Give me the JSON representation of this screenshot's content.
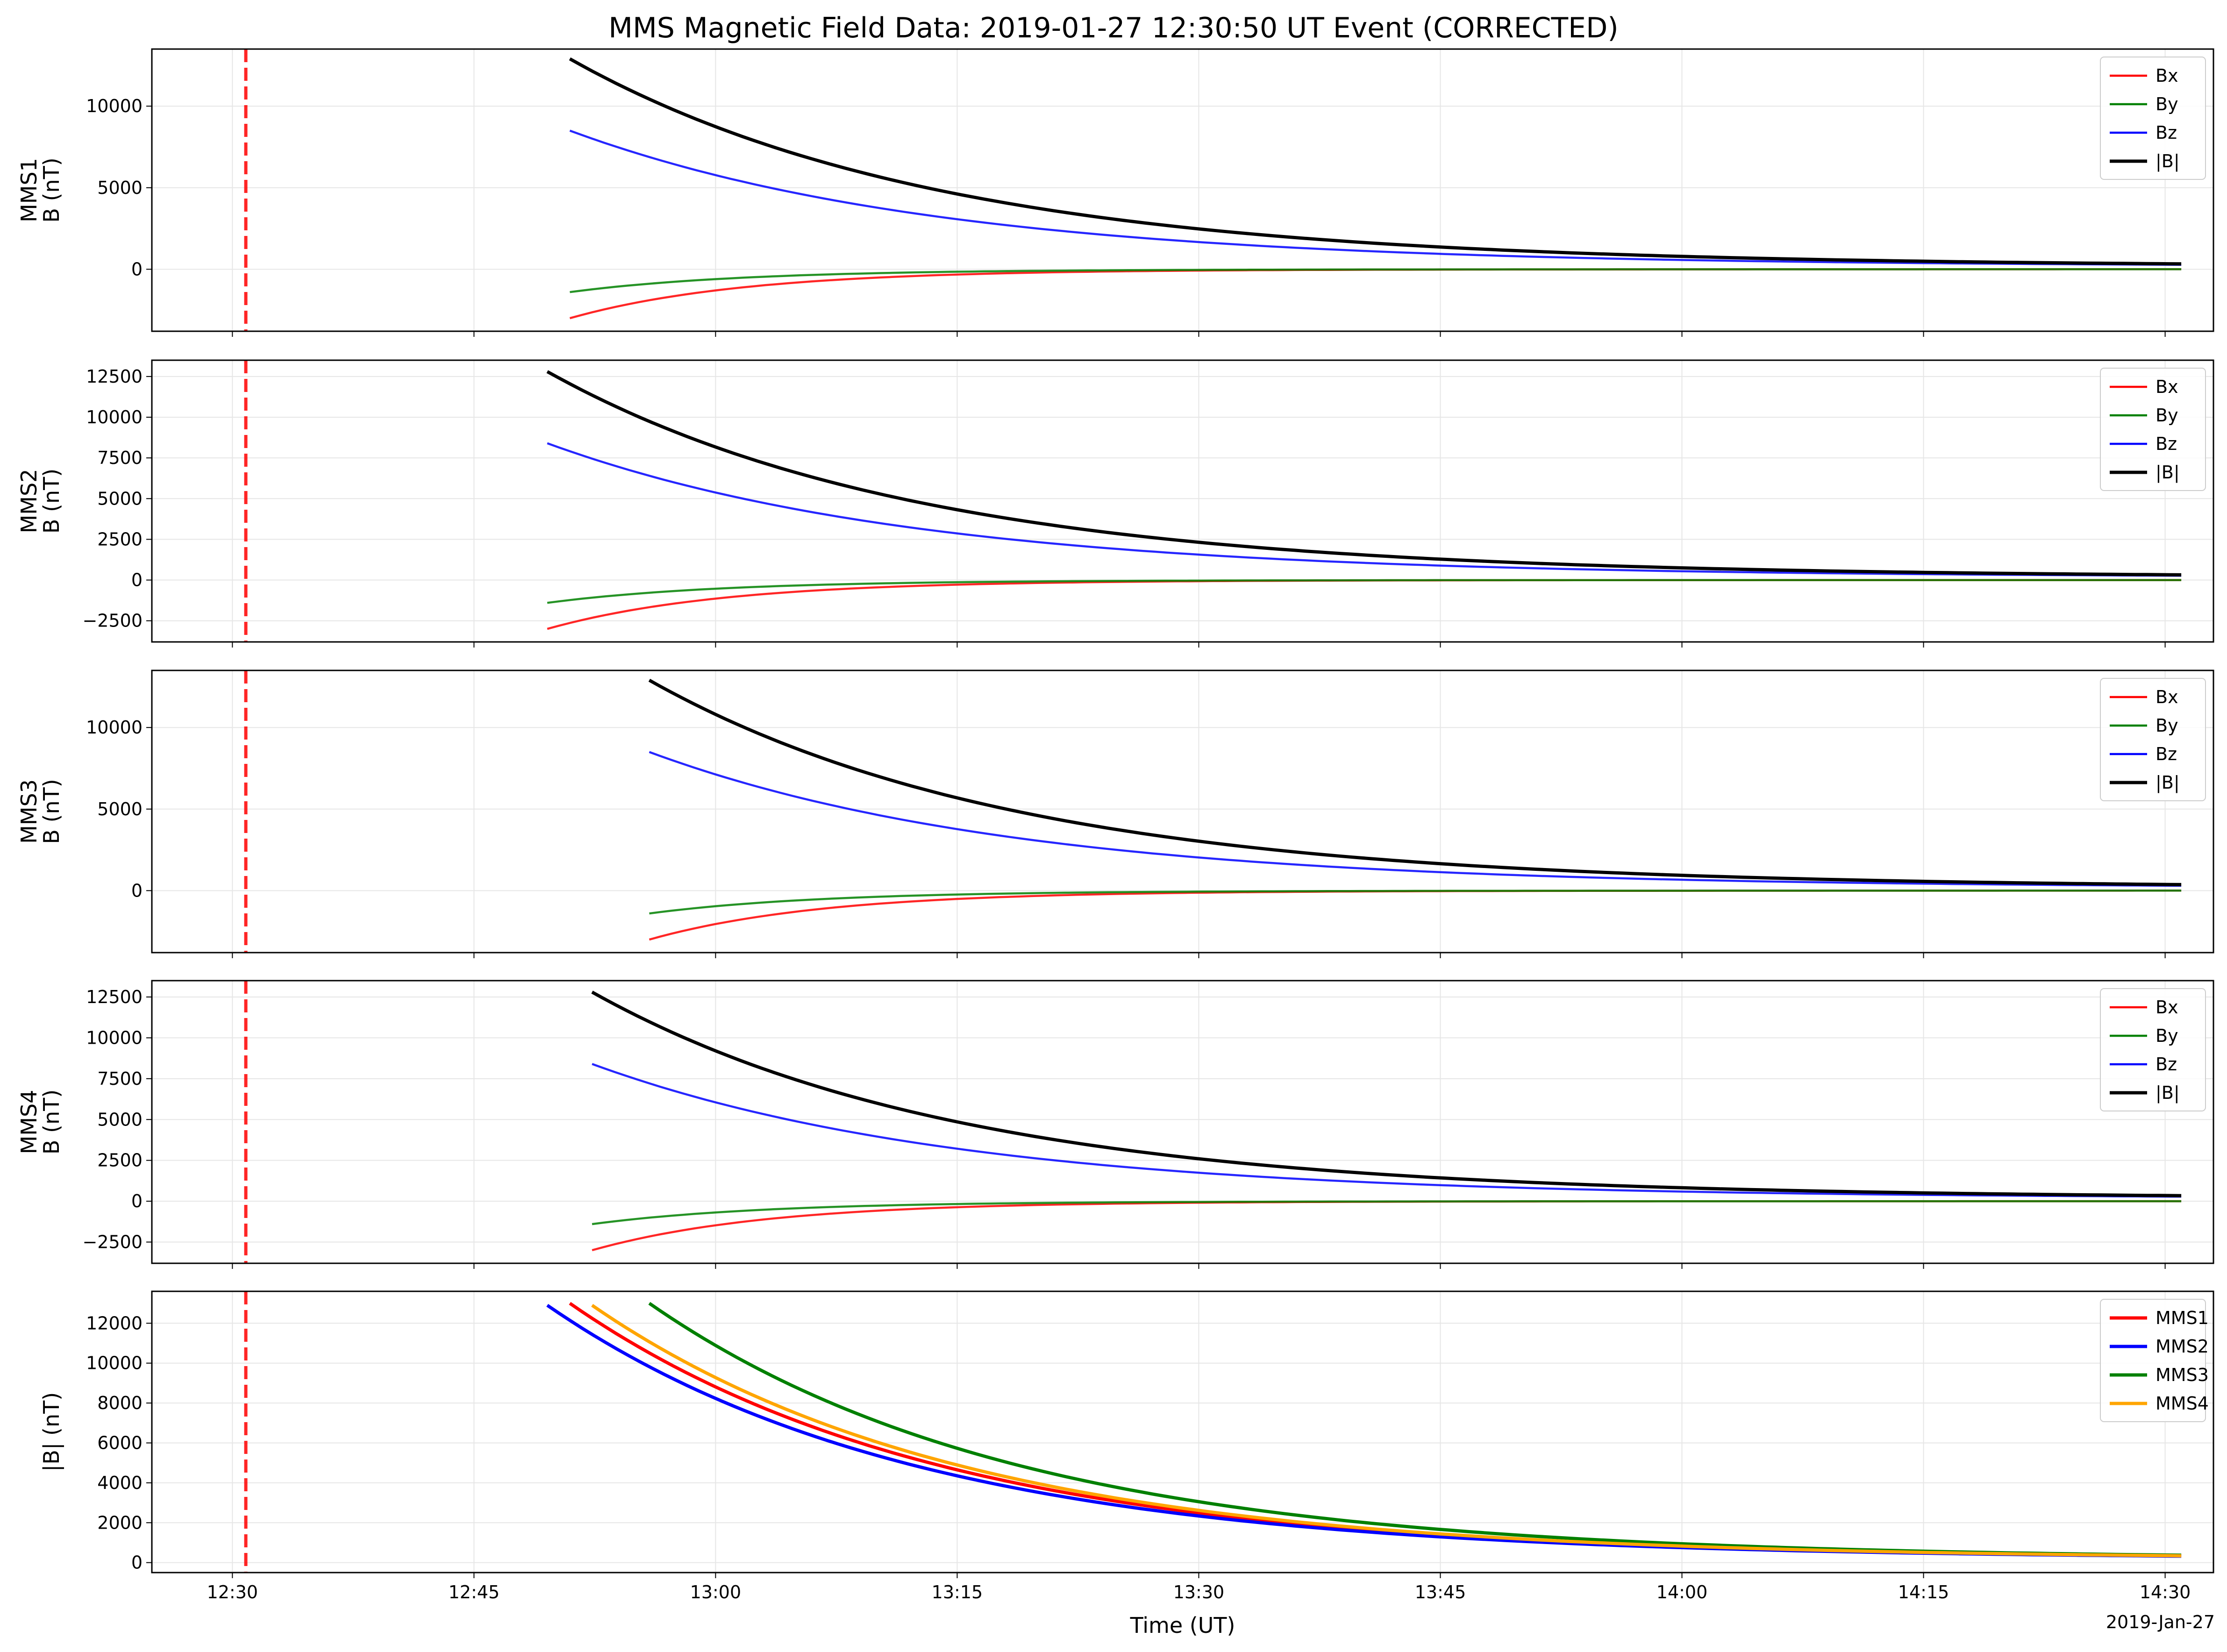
{
  "chart_data": {
    "type": "line",
    "title": "MMS Magnetic Field Data: 2019-01-27 12:30:50 UT Event (CORRECTED)",
    "xlabel": "Time (UT)",
    "date_label": "2019-Jan-27",
    "x_ticks": [
      "12:30",
      "12:45",
      "13:00",
      "13:15",
      "13:30",
      "13:45",
      "14:00",
      "14:15",
      "14:30"
    ],
    "xlim": [
      "12:25",
      "14:33"
    ],
    "grid": true,
    "event_marker": {
      "time": "12:30:50",
      "color": "#ff0000",
      "style": "dashed"
    },
    "panels": [
      {
        "id": "mms1",
        "ylabel_line1": "MMS1",
        "ylabel_line2": "B (nT)",
        "ylim": [
          -3800,
          13500
        ],
        "y_ticks": [
          0,
          5000,
          10000
        ],
        "y_tick_labels": [
          "0",
          "5000",
          "10000"
        ],
        "legend_position": "top-right",
        "start_time": "12:50:57",
        "end_time": "14:31:00",
        "series": [
          {
            "name": "Bx",
            "color": "#ff0000",
            "start": -3000,
            "tau_minutes": 10.8
          },
          {
            "name": "By",
            "color": "#008000",
            "start": -1400,
            "tau_minutes": 10.8
          },
          {
            "name": "Bz",
            "color": "#0000ff",
            "start": 8500,
            "tau_minutes": 23
          },
          {
            "name": "|B|",
            "color": "#000000",
            "start": 12900,
            "tau_minutes": 23
          }
        ]
      },
      {
        "id": "mms2",
        "ylabel_line1": "MMS2",
        "ylabel_line2": "B (nT)",
        "ylim": [
          -3800,
          13500
        ],
        "y_ticks": [
          -2500,
          0,
          2500,
          5000,
          7500,
          10000,
          12500
        ],
        "y_tick_labels": [
          "−2500",
          "0",
          "2500",
          "5000",
          "7500",
          "10000",
          "12500"
        ],
        "legend_position": "top-right",
        "start_time": "12:49:33",
        "end_time": "14:31:00",
        "series": [
          {
            "name": "Bx",
            "color": "#ff0000",
            "start": -3000,
            "tau_minutes": 10.8
          },
          {
            "name": "By",
            "color": "#008000",
            "start": -1400,
            "tau_minutes": 10.8
          },
          {
            "name": "Bz",
            "color": "#0000ff",
            "start": 8400,
            "tau_minutes": 23
          },
          {
            "name": "|B|",
            "color": "#000000",
            "start": 12800,
            "tau_minutes": 23
          }
        ]
      },
      {
        "id": "mms3",
        "ylabel_line1": "MMS3",
        "ylabel_line2": "B (nT)",
        "ylim": [
          -3800,
          13500
        ],
        "y_ticks": [
          0,
          5000,
          10000
        ],
        "y_tick_labels": [
          "0",
          "5000",
          "10000"
        ],
        "legend_position": "top-right",
        "start_time": "12:55:53",
        "end_time": "14:31:00",
        "series": [
          {
            "name": "Bx",
            "color": "#ff0000",
            "start": -3000,
            "tau_minutes": 10.8
          },
          {
            "name": "By",
            "color": "#008000",
            "start": -1400,
            "tau_minutes": 10.8
          },
          {
            "name": "Bz",
            "color": "#0000ff",
            "start": 8500,
            "tau_minutes": 23
          },
          {
            "name": "|B|",
            "color": "#000000",
            "start": 12900,
            "tau_minutes": 23
          }
        ]
      },
      {
        "id": "mms4",
        "ylabel_line1": "MMS4",
        "ylabel_line2": "B (nT)",
        "ylim": [
          -3800,
          13500
        ],
        "y_ticks": [
          -2500,
          0,
          2500,
          5000,
          7500,
          10000,
          12500
        ],
        "y_tick_labels": [
          "−2500",
          "0",
          "2500",
          "5000",
          "7500",
          "10000",
          "12500"
        ],
        "legend_position": "top-right",
        "start_time": "12:52:20",
        "end_time": "14:31:00",
        "series": [
          {
            "name": "Bx",
            "color": "#ff0000",
            "start": -3000,
            "tau_minutes": 10.8
          },
          {
            "name": "By",
            "color": "#008000",
            "start": -1400,
            "tau_minutes": 10.8
          },
          {
            "name": "Bz",
            "color": "#0000ff",
            "start": 8400,
            "tau_minutes": 23
          },
          {
            "name": "|B|",
            "color": "#000000",
            "start": 12800,
            "tau_minutes": 23
          }
        ]
      },
      {
        "id": "babs",
        "ylabel_line1": "|B| (nT)",
        "ylabel_line2": "",
        "ylim": [
          -500,
          13600
        ],
        "y_ticks": [
          0,
          2000,
          4000,
          6000,
          8000,
          10000,
          12000
        ],
        "y_tick_labels": [
          "0",
          "2000",
          "4000",
          "6000",
          "8000",
          "10000",
          "12000"
        ],
        "legend_position": "top-right",
        "series": [
          {
            "name": "MMS1",
            "color": "#ff0000",
            "start": 13000,
            "start_time": "12:50:57",
            "end_time": "14:31:00",
            "tau_minutes": 23
          },
          {
            "name": "MMS2",
            "color": "#0000ff",
            "start": 12900,
            "start_time": "12:49:33",
            "end_time": "14:31:00",
            "tau_minutes": 23
          },
          {
            "name": "MMS3",
            "color": "#008000",
            "start": 13000,
            "start_time": "12:55:53",
            "end_time": "14:31:00",
            "tau_minutes": 23
          },
          {
            "name": "MMS4",
            "color": "#ffa500",
            "start": 12900,
            "start_time": "12:52:20",
            "end_time": "14:31:00",
            "tau_minutes": 23
          }
        ]
      }
    ]
  }
}
